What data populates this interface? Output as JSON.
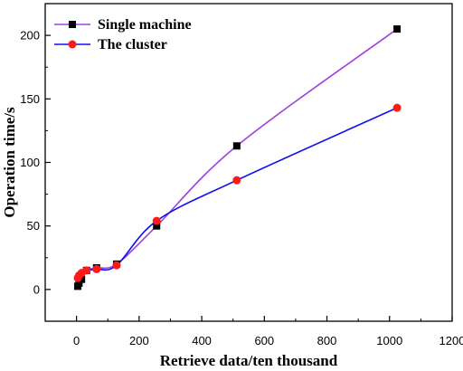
{
  "chart_data": {
    "type": "line",
    "xlabel": "Retrieve data/ten thousand",
    "ylabel": "Operation time/s",
    "xlim": [
      -100,
      1200
    ],
    "ylim": [
      -25,
      225
    ],
    "xticks": [
      0,
      200,
      400,
      600,
      800,
      1000,
      1200
    ],
    "yticks": [
      0,
      50,
      100,
      150,
      200
    ],
    "grid": false,
    "legend_position": "top-left",
    "series": [
      {
        "name": "Single machine",
        "color": "#a040e0",
        "marker": "square",
        "marker_color": "#000000",
        "x": [
          4,
          8,
          16,
          32,
          64,
          128,
          256,
          512,
          1024
        ],
        "y": [
          2.5,
          5,
          8,
          15,
          17,
          20,
          50,
          113,
          205
        ]
      },
      {
        "name": "The cluster",
        "color": "#1010ee",
        "marker": "circle",
        "marker_color": "#ff1a1a",
        "x": [
          4,
          8,
          16,
          32,
          64,
          128,
          256,
          512,
          1024
        ],
        "y": [
          9,
          11,
          13,
          15,
          16,
          19,
          54,
          86,
          143
        ]
      }
    ]
  }
}
